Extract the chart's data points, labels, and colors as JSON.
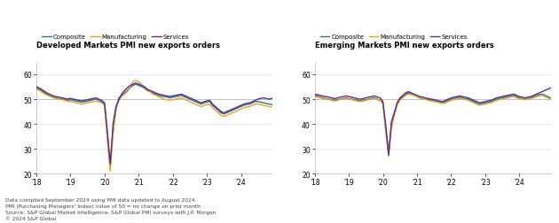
{
  "title_left": "Developed Markets PMI new exports orders",
  "title_right": "Emerging Markets PMI new exports orders",
  "legend_labels": [
    "Composite",
    "Manufacturing",
    "Services"
  ],
  "colors": [
    "#2a7b7c",
    "#e8a030",
    "#5b2d8e"
  ],
  "ylim": [
    20,
    65
  ],
  "yticks": [
    20,
    30,
    40,
    50,
    60
  ],
  "ref_line": 50,
  "footnote": [
    "Data compiled September 2024 using PMI data updated to August 2024.",
    "PMI (Purchasing Managers' Index) value of 50 = no change on prior month",
    "Source: S&P Global Market Intelligence, S&P Global PMI surveys with J.P. Morgan",
    "© 2024 S&P Global"
  ],
  "background": "#ffffff",
  "dm_composite": [
    54.5,
    54.0,
    53.2,
    52.5,
    51.8,
    51.2,
    50.8,
    50.5,
    50.2,
    50.0,
    49.8,
    49.5,
    49.8,
    49.5,
    49.2,
    49.0,
    48.8,
    49.0,
    49.2,
    49.5,
    49.8,
    50.0,
    49.5,
    49.0,
    48.0,
    35.0,
    23.0,
    38.0,
    46.0,
    50.5,
    51.5,
    52.5,
    53.5,
    54.5,
    55.5,
    56.0,
    55.5,
    55.0,
    54.5,
    53.5,
    53.0,
    52.5,
    52.0,
    51.5,
    51.2,
    51.0,
    50.8,
    50.5,
    50.8,
    51.0,
    51.2,
    51.5,
    51.0,
    50.5,
    50.0,
    49.5,
    49.0,
    48.5,
    48.0,
    48.5,
    48.8,
    49.0,
    47.5,
    46.5,
    45.5,
    44.5,
    44.0,
    44.5,
    45.0,
    45.5,
    46.0,
    46.5,
    47.0,
    47.5,
    47.8,
    48.0,
    48.5,
    49.0,
    49.0,
    48.8,
    48.5,
    48.2,
    48.0,
    47.8
  ],
  "dm_manufacturing": [
    54.0,
    53.5,
    52.8,
    52.0,
    51.5,
    51.0,
    50.5,
    50.2,
    50.0,
    49.8,
    49.5,
    49.2,
    49.0,
    48.8,
    48.5,
    48.2,
    48.0,
    48.2,
    48.5,
    48.8,
    49.0,
    49.2,
    48.8,
    48.5,
    47.5,
    33.0,
    21.0,
    36.0,
    45.0,
    50.0,
    51.0,
    52.0,
    53.0,
    54.5,
    57.0,
    57.5,
    57.0,
    56.0,
    55.0,
    54.0,
    53.0,
    52.0,
    51.5,
    51.0,
    50.5,
    50.0,
    49.8,
    49.5,
    49.8,
    50.0,
    50.2,
    50.5,
    50.0,
    49.5,
    49.0,
    48.5,
    48.0,
    47.5,
    47.0,
    47.5,
    47.8,
    48.0,
    46.5,
    45.5,
    44.5,
    43.5,
    43.0,
    43.5,
    44.0,
    44.5,
    45.0,
    45.5,
    46.0,
    46.5,
    46.8,
    47.0,
    47.5,
    48.0,
    48.0,
    47.8,
    47.5,
    47.2,
    47.0,
    46.8
  ],
  "dm_services": [
    55.0,
    54.5,
    53.8,
    53.0,
    52.3,
    51.8,
    51.3,
    51.0,
    50.8,
    50.5,
    50.3,
    50.0,
    50.3,
    50.0,
    49.8,
    49.5,
    49.3,
    49.5,
    49.8,
    50.0,
    50.3,
    50.5,
    50.0,
    49.5,
    48.5,
    37.0,
    24.0,
    40.0,
    47.0,
    49.5,
    52.0,
    53.5,
    54.5,
    55.5,
    56.0,
    56.5,
    56.0,
    55.5,
    55.0,
    54.0,
    53.5,
    53.0,
    52.5,
    52.0,
    51.8,
    51.5,
    51.3,
    51.0,
    51.3,
    51.5,
    51.8,
    52.0,
    51.5,
    51.0,
    50.5,
    50.0,
    49.5,
    49.0,
    48.5,
    49.0,
    49.3,
    49.5,
    48.0,
    47.0,
    46.0,
    45.0,
    44.5,
    45.0,
    45.5,
    46.0,
    46.5,
    47.0,
    47.5,
    48.0,
    48.3,
    48.5,
    49.0,
    49.5,
    50.0,
    50.3,
    50.5,
    50.2,
    50.0,
    50.3
  ],
  "em_composite": [
    51.5,
    51.2,
    50.8,
    50.5,
    50.2,
    50.0,
    49.8,
    49.5,
    49.8,
    50.0,
    50.2,
    50.5,
    50.2,
    50.0,
    49.8,
    49.5,
    49.3,
    49.5,
    49.8,
    50.0,
    50.3,
    50.5,
    50.0,
    49.5,
    48.5,
    38.0,
    28.0,
    40.0,
    44.0,
    48.0,
    50.0,
    51.0,
    52.0,
    52.5,
    52.0,
    51.5,
    51.0,
    50.5,
    50.2,
    50.0,
    49.8,
    49.5,
    49.3,
    49.0,
    48.8,
    48.5,
    49.0,
    49.5,
    50.0,
    50.2,
    50.5,
    50.8,
    50.5,
    50.2,
    50.0,
    49.5,
    49.0,
    48.5,
    48.0,
    48.3,
    48.5,
    48.8,
    49.0,
    49.5,
    50.0,
    50.3,
    50.5,
    50.8,
    51.0,
    51.3,
    51.5,
    51.0,
    50.5,
    50.2,
    50.0,
    50.3,
    50.5,
    51.0,
    51.5,
    51.8,
    52.0,
    51.5,
    51.0,
    50.5
  ],
  "em_manufacturing": [
    51.0,
    50.8,
    50.5,
    50.2,
    50.0,
    49.8,
    49.5,
    49.2,
    49.5,
    49.8,
    50.0,
    50.3,
    50.0,
    49.8,
    49.5,
    49.2,
    49.0,
    49.2,
    49.5,
    49.8,
    50.0,
    50.3,
    49.8,
    49.5,
    48.0,
    36.5,
    27.0,
    38.0,
    43.5,
    47.5,
    49.5,
    50.5,
    51.5,
    52.0,
    51.8,
    51.5,
    51.0,
    50.5,
    50.2,
    49.8,
    49.5,
    49.2,
    49.0,
    48.8,
    48.5,
    48.2,
    48.5,
    49.0,
    49.5,
    49.8,
    50.0,
    50.3,
    50.0,
    49.8,
    49.5,
    49.0,
    48.5,
    48.0,
    47.5,
    47.8,
    48.0,
    48.3,
    48.5,
    49.0,
    49.5,
    49.8,
    50.0,
    50.3,
    50.5,
    50.8,
    51.0,
    50.5,
    50.2,
    50.0,
    49.8,
    50.0,
    50.2,
    50.5,
    51.0,
    51.3,
    51.5,
    51.0,
    50.5,
    50.0
  ],
  "em_services": [
    52.0,
    51.8,
    51.5,
    51.2,
    51.0,
    50.8,
    50.5,
    50.2,
    50.5,
    50.8,
    51.0,
    51.3,
    51.0,
    50.8,
    50.5,
    50.2,
    50.0,
    50.2,
    50.5,
    50.8,
    51.0,
    51.3,
    50.8,
    50.5,
    49.0,
    39.5,
    27.5,
    41.0,
    44.5,
    48.5,
    50.5,
    51.5,
    52.5,
    53.0,
    52.5,
    52.0,
    51.5,
    51.0,
    50.8,
    50.5,
    50.2,
    50.0,
    49.8,
    49.5,
    49.2,
    49.0,
    49.5,
    50.0,
    50.5,
    50.8,
    51.0,
    51.3,
    51.0,
    50.8,
    50.5,
    50.0,
    49.5,
    49.0,
    48.5,
    48.8,
    49.0,
    49.3,
    49.5,
    50.0,
    50.5,
    50.8,
    51.0,
    51.3,
    51.5,
    51.8,
    52.0,
    51.5,
    51.0,
    50.8,
    50.5,
    50.8,
    51.0,
    51.5,
    52.0,
    52.5,
    53.0,
    53.5,
    54.0,
    54.5
  ],
  "n_points": 84,
  "xtick_positions": [
    0,
    12,
    24,
    36,
    48,
    60,
    72
  ],
  "xtick_labels": [
    "'18",
    "'19",
    "'20",
    "'21",
    "'22",
    "'23",
    "'24"
  ]
}
